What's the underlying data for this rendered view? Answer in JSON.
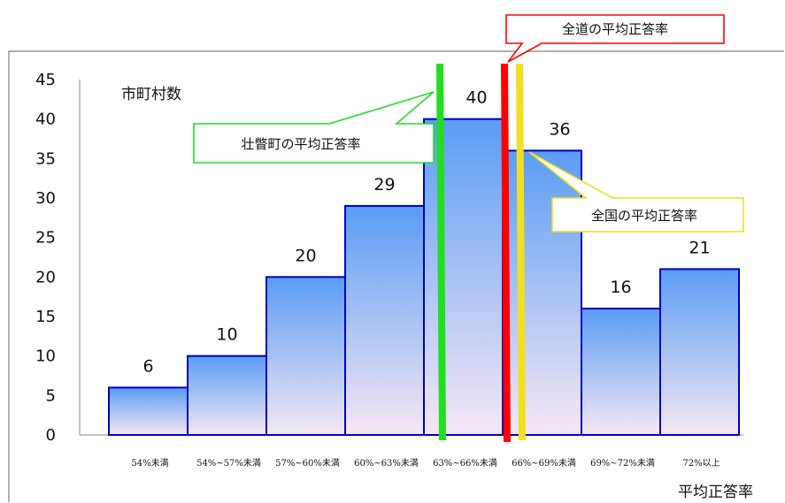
{
  "chart_data": {
    "type": "bar",
    "categories": [
      "54%未満",
      "54%~57%未満",
      "57%~60%未満",
      "60%~63%未満",
      "63%~66%未満",
      "66%~69%未満",
      "69%~72%未満",
      "72%以上"
    ],
    "values": [
      6,
      10,
      20,
      29,
      40,
      36,
      16,
      21
    ],
    "ylabel": "市町村数",
    "xlabel": "平均正答率",
    "ylim": [
      0,
      45
    ],
    "yticks": [
      0,
      5,
      10,
      15,
      20,
      25,
      30,
      35,
      40,
      45
    ],
    "grid": false,
    "bar_gradient": [
      "#5a9cf5",
      "#f6e8f4"
    ],
    "bar_border": "#0000c0",
    "annotations": [
      {
        "text": "全道の平均正答率",
        "color": "#ff0000"
      },
      {
        "text": "壮瞥町の平均正答率",
        "color": "#22dd22"
      },
      {
        "text": "全国の平均正答率",
        "color": "#f0e020"
      }
    ]
  }
}
